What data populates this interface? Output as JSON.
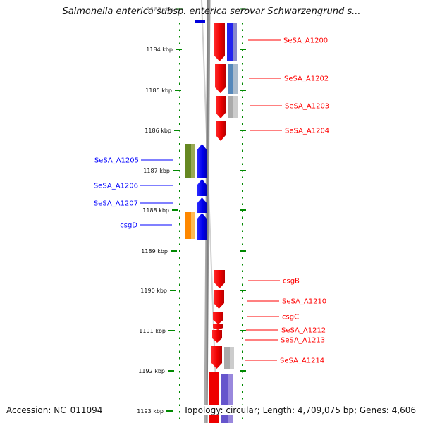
{
  "title": "Salmonella enterica subsp. enterica serovar Schwarzengrund s...",
  "footer": {
    "accession": "Accession: NC_011094",
    "topology": "Topology: circular; Length: 4,709,075 bp; Genes: 4,606"
  },
  "colors": {
    "forward": "#ff0000",
    "reverse": "#0000ff",
    "backbone": "#888888",
    "scale": "#008800"
  },
  "map": {
    "ruler": [
      {
        "label": "1183 kbp",
        "faded": true
      },
      {
        "label": "1184 kbp"
      },
      {
        "label": "1185 kbp"
      },
      {
        "label": "1186 kbp"
      },
      {
        "label": "1187 kbp"
      },
      {
        "label": "1188 kbp"
      },
      {
        "label": "1189 kbp"
      },
      {
        "label": "1190 kbp"
      },
      {
        "label": "1191 kbp"
      },
      {
        "label": "1192 kbp"
      },
      {
        "label": "1193 kbp"
      }
    ],
    "genes": [
      {
        "label": "SeSA_A1200",
        "strand": "forward"
      },
      {
        "label": "SeSA_A1202",
        "strand": "forward"
      },
      {
        "label": "SeSA_A1203",
        "strand": "forward"
      },
      {
        "label": "SeSA_A1204",
        "strand": "forward"
      },
      {
        "label": "SeSA_A1205",
        "strand": "reverse"
      },
      {
        "label": "SeSA_A1206",
        "strand": "reverse"
      },
      {
        "label": "SeSA_A1207",
        "strand": "reverse"
      },
      {
        "label": "csgD",
        "strand": "reverse"
      },
      {
        "label": "csgB",
        "strand": "forward"
      },
      {
        "label": "SeSA_A1210",
        "strand": "forward"
      },
      {
        "label": "csgC",
        "strand": "forward"
      },
      {
        "label": "SeSA_A1212",
        "strand": "forward"
      },
      {
        "label": "SeSA_A1213",
        "strand": "forward"
      },
      {
        "label": "SeSA_A1214",
        "strand": "forward"
      }
    ]
  }
}
